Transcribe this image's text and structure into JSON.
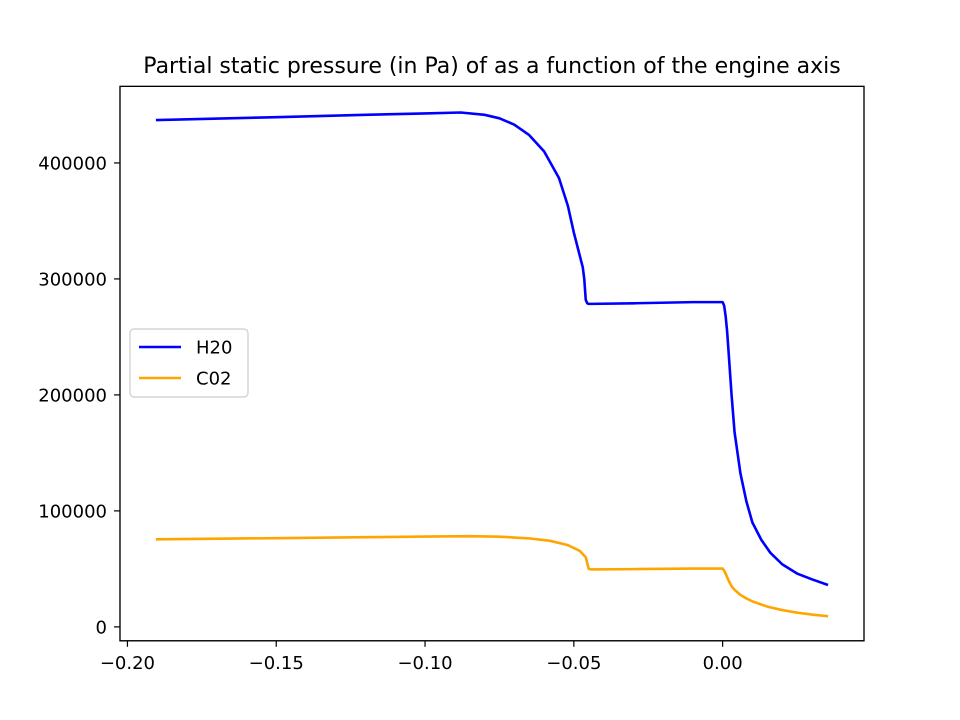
{
  "chart_data": {
    "type": "line",
    "title": "Partial static pressure (in Pa) of as a function of the engine axis",
    "xlabel": "",
    "ylabel": "",
    "xlim": [
      -0.2025,
      0.0475
    ],
    "ylim": [
      -12000,
      466000
    ],
    "x_ticks": [
      {
        "value": -0.2,
        "label": "−0.20"
      },
      {
        "value": -0.15,
        "label": "−0.15"
      },
      {
        "value": -0.1,
        "label": "−0.10"
      },
      {
        "value": -0.05,
        "label": "−0.05"
      },
      {
        "value": 0.0,
        "label": "0.00"
      }
    ],
    "y_ticks": [
      {
        "value": 0,
        "label": "0"
      },
      {
        "value": 100000,
        "label": "100000"
      },
      {
        "value": 200000,
        "label": "200000"
      },
      {
        "value": 300000,
        "label": "300000"
      },
      {
        "value": 400000,
        "label": "400000"
      }
    ],
    "grid": false,
    "legend_position": "center-left",
    "series": [
      {
        "name": "H20",
        "color": "#0000ff",
        "x": [
          -0.19,
          -0.15,
          -0.12,
          -0.1,
          -0.088,
          -0.08,
          -0.075,
          -0.07,
          -0.065,
          -0.06,
          -0.055,
          -0.052,
          -0.05,
          -0.048,
          -0.047,
          -0.0465,
          -0.046,
          -0.0455,
          -0.045,
          -0.044,
          -0.03,
          -0.01,
          0.0,
          0.0005,
          0.001,
          0.0015,
          0.002,
          0.003,
          0.004,
          0.006,
          0.008,
          0.01,
          0.013,
          0.016,
          0.02,
          0.025,
          0.03,
          0.035
        ],
        "y": [
          437000,
          439500,
          441500,
          442700,
          443500,
          441500,
          438500,
          433000,
          424000,
          410000,
          387000,
          363000,
          340000,
          320000,
          310000,
          300000,
          282000,
          279000,
          278500,
          278500,
          279000,
          280000,
          280000,
          277000,
          268000,
          255000,
          237000,
          200000,
          168000,
          132000,
          108000,
          90000,
          75000,
          64000,
          54000,
          46000,
          41000,
          36500
        ]
      },
      {
        "name": "C02",
        "color": "#ffa500",
        "x": [
          -0.19,
          -0.15,
          -0.12,
          -0.1,
          -0.085,
          -0.075,
          -0.065,
          -0.058,
          -0.052,
          -0.048,
          -0.046,
          -0.0455,
          -0.045,
          -0.044,
          -0.03,
          -0.01,
          0.0,
          0.0005,
          0.001,
          0.0015,
          0.002,
          0.003,
          0.004,
          0.006,
          0.008,
          0.01,
          0.015,
          0.02,
          0.025,
          0.03,
          0.035
        ],
        "y": [
          75500,
          76500,
          77300,
          77900,
          78200,
          77800,
          76300,
          74200,
          70500,
          65500,
          60000,
          55000,
          50000,
          49500,
          49800,
          50300,
          50300,
          48500,
          46000,
          43000,
          40000,
          35000,
          32000,
          27500,
          24500,
          22000,
          17500,
          14500,
          12300,
          10600,
          9300
        ]
      }
    ]
  }
}
